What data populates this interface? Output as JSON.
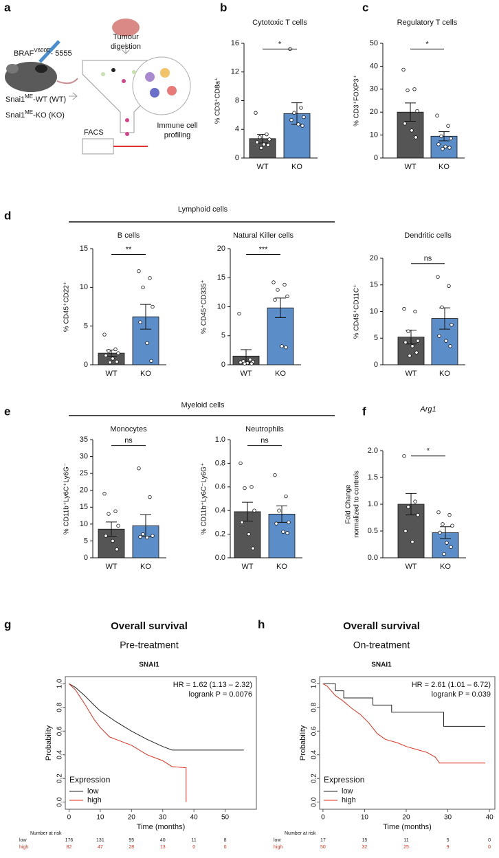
{
  "panel_labels": [
    "a",
    "b",
    "c",
    "d",
    "e",
    "f",
    "g",
    "h"
  ],
  "groups": [
    "Lymphoid cells",
    "Myeloid cells"
  ],
  "schematic": {
    "mouse_label": [
      "BRAF",
      "V600E",
      "- 5555"
    ],
    "digestion": [
      "Tumour",
      "digestion"
    ],
    "wt": [
      "Snai1",
      "ME",
      "-WT (WT)"
    ],
    "ko": [
      "Snai1",
      "ME",
      "-KO (KO)"
    ],
    "facs": "FACS",
    "profiling": [
      "Immune cell",
      "profiling"
    ]
  },
  "chart_data": [
    {
      "type": "bar",
      "title": "Cytotoxic T cells",
      "ylabel": "% CD3⁺CD8a⁺",
      "categories": [
        "WT",
        "KO"
      ],
      "values": [
        2.7,
        6.2
      ],
      "errors": [
        0.6,
        1.5
      ],
      "points": [
        [
          6.3,
          3.3,
          2.9,
          2.6,
          2.2,
          1.9,
          1.8,
          1.4
        ],
        [
          15.2,
          7.0,
          6.3,
          5.7,
          5.3,
          4.7,
          4.5
        ]
      ],
      "colors": [
        "#555555",
        "#5b8ec9"
      ],
      "ylim": [
        0,
        16
      ],
      "yticks": [
        0,
        4,
        8,
        12,
        16
      ],
      "significance": "*"
    },
    {
      "type": "bar",
      "title": "Regulatory T cells",
      "ylabel": "% CD3⁺FOXP3⁺",
      "categories": [
        "WT",
        "KO"
      ],
      "values": [
        20,
        9.5
      ],
      "errors": [
        4,
        2
      ],
      "points": [
        [
          38.5,
          30,
          29.5,
          20.5,
          15,
          12,
          9
        ],
        [
          18.5,
          14,
          9.5,
          8.5,
          6,
          5,
          4.5,
          4
        ]
      ],
      "colors": [
        "#555555",
        "#5b8ec9"
      ],
      "ylim": [
        0,
        50
      ],
      "yticks": [
        0,
        10,
        20,
        30,
        40,
        50
      ],
      "significance": "*"
    },
    {
      "type": "bar",
      "title": "B cells",
      "ylabel": "% CD45⁺CD22⁺",
      "categories": [
        "WT",
        "KO"
      ],
      "values": [
        1.5,
        6.2
      ],
      "errors": [
        0.4,
        1.6
      ],
      "points": [
        [
          3.9,
          2.0,
          1.8,
          1.5,
          1.2,
          0.8,
          0.4,
          0.3
        ],
        [
          12.1,
          11.2,
          10,
          7.5,
          5.5,
          2.8,
          0.5
        ]
      ],
      "colors": [
        "#555555",
        "#5b8ec9"
      ],
      "ylim": [
        0,
        15
      ],
      "yticks": [
        0,
        5,
        10,
        15
      ],
      "significance": "**"
    },
    {
      "type": "bar",
      "title": "Natural Killer cells",
      "ylabel": "% CD45⁺CD335⁺",
      "categories": [
        "WT",
        "KO"
      ],
      "values": [
        1.5,
        9.8
      ],
      "errors": [
        1.1,
        1.7
      ],
      "points": [
        [
          8.8,
          0.9,
          0.6,
          0.5,
          0.4,
          0.3,
          0.2,
          0.2
        ],
        [
          14.2,
          13.8,
          12.9,
          11.8,
          11.2,
          3.2,
          3
        ]
      ],
      "colors": [
        "#555555",
        "#5b8ec9"
      ],
      "ylim": [
        0,
        20
      ],
      "yticks": [
        0,
        5,
        10,
        15,
        20
      ],
      "significance": "***"
    },
    {
      "type": "bar",
      "title": "Dendritic cells",
      "ylabel": "% CD45⁺CD11C⁺",
      "categories": [
        "WT",
        "KO"
      ],
      "values": [
        5.2,
        8.7
      ],
      "errors": [
        1.3,
        2
      ],
      "points": [
        [
          10.5,
          10,
          6.3,
          4.5,
          4.2,
          3.5,
          2.3,
          1.7
        ],
        [
          16.5,
          14.8,
          10.8,
          7.5,
          5.4,
          4.5,
          3.5
        ]
      ],
      "colors": [
        "#555555",
        "#5b8ec9"
      ],
      "ylim": [
        0,
        20
      ],
      "yticks": [
        0,
        5,
        10,
        15,
        20
      ],
      "significance": "ns"
    },
    {
      "type": "bar",
      "title": "Monocytes",
      "ylabel": "% CD11b⁺Ly6C⁺Ly6G⁻",
      "categories": [
        "WT",
        "KO"
      ],
      "values": [
        8.5,
        9.5
      ],
      "errors": [
        2.1,
        3.3
      ],
      "points": [
        [
          19,
          13.8,
          13,
          9.5,
          6.5,
          5,
          2.5
        ],
        [
          26.5,
          18,
          7,
          6.5,
          6.2,
          6
        ]
      ],
      "colors": [
        "#555555",
        "#5b8ec9"
      ],
      "ylim": [
        0,
        35
      ],
      "yticks": [
        0,
        5,
        10,
        15,
        20,
        25,
        30,
        35
      ],
      "significance": "ns"
    },
    {
      "type": "bar",
      "title": "Neutrophils",
      "ylabel": "% CD11b⁺Ly6C⁻Ly6G⁺",
      "categories": [
        "WT",
        "KO"
      ],
      "values": [
        0.39,
        0.37
      ],
      "errors": [
        0.08,
        0.07
      ],
      "points": [
        [
          0.8,
          0.6,
          0.59,
          0.4,
          0.3,
          0.2,
          0.08
        ],
        [
          0.7,
          0.52,
          0.4,
          0.3,
          0.29,
          0.22,
          0.21
        ]
      ],
      "colors": [
        "#555555",
        "#5b8ec9"
      ],
      "ylim": [
        0,
        1
      ],
      "yticks": [
        {
          "value": 0,
          "label": "0.0"
        },
        0.2,
        0.4,
        0.6,
        0.8,
        {
          "value": 1,
          "label": "1.0"
        }
      ],
      "significance": "ns"
    },
    {
      "type": "bar",
      "title": "Arg1",
      "ylabel": [
        "Fold Change",
        "normalized to controls"
      ],
      "categories": [
        "WT",
        "KO"
      ],
      "values": [
        1.0,
        0.47
      ],
      "errors": [
        0.2,
        0.11
      ],
      "points": [
        [
          1.9,
          1.05,
          0.95,
          0.8,
          0.5,
          0.3
        ],
        [
          0.85,
          0.8,
          0.63,
          0.6,
          0.47,
          0.28,
          0.2,
          0.07
        ]
      ],
      "colors": [
        "#555555",
        "#5b8ec9"
      ],
      "ylim": [
        0,
        2
      ],
      "yticks": [
        {
          "value": 0,
          "label": "0.0"
        },
        0.5,
        {
          "value": 1,
          "label": "1.0"
        },
        1.5,
        {
          "value": 2,
          "label": "2.0"
        }
      ],
      "significance": "*"
    },
    {
      "type": "line",
      "title": "Overall survival",
      "subtitle": "Pre-treatment",
      "gene": "SNAI1",
      "annotations": [
        "HR = 1.62 (1.13 – 2.32)",
        "logrank P = 0.0076"
      ],
      "xlabel": "Time (months)",
      "ylabel": "Probability",
      "xlim": [
        -1.2,
        60
      ],
      "xticks": [
        0,
        10,
        20,
        30,
        40,
        50
      ],
      "ylim": [
        -0.06,
        1.06
      ],
      "yticks": [
        {
          "value": 0,
          "label": "0.0"
        },
        0.2,
        0.4,
        0.6,
        0.8,
        {
          "value": 1,
          "label": "1.0"
        }
      ],
      "legend_title": "Expression",
      "legend": "lower left",
      "series": [
        {
          "name": "low",
          "color": "#222222",
          "x": [
            0,
            2,
            5,
            8,
            10,
            15,
            20,
            25,
            30,
            33,
            56
          ],
          "values": [
            1,
            0.97,
            0.9,
            0.82,
            0.77,
            0.68,
            0.6,
            0.53,
            0.47,
            0.44,
            0.44
          ]
        },
        {
          "name": "high",
          "color": "#e0301e",
          "x": [
            0,
            2,
            5,
            8,
            10,
            13,
            15,
            20,
            25,
            30,
            33,
            37.5,
            37.5
          ],
          "values": [
            1,
            0.95,
            0.83,
            0.7,
            0.63,
            0.55,
            0.53,
            0.48,
            0.4,
            0.35,
            0.3,
            0.29,
            0
          ]
        }
      ],
      "risk_title": "Number at risk",
      "risk": [
        [
          176,
          131,
          95,
          40,
          11,
          8
        ],
        [
          82,
          47,
          28,
          13,
          0,
          0
        ]
      ]
    },
    {
      "type": "line",
      "title": "Overall survival",
      "subtitle": "On-treatment",
      "gene": "SNAI1",
      "annotations": [
        "HR = 2.61 (1.01 – 6.72)",
        "logrank P = 0.039"
      ],
      "xlabel": "Time (months)",
      "ylabel": "Probability",
      "xlim": [
        -0.8,
        41.3
      ],
      "xticks": [
        0,
        10,
        20,
        30,
        40
      ],
      "ylim": [
        -0.06,
        1.06
      ],
      "yticks": [
        {
          "value": 0,
          "label": "0.0"
        },
        0.2,
        0.4,
        0.6,
        0.8,
        {
          "value": 1,
          "label": "1.0"
        }
      ],
      "legend_title": "Expression",
      "legend": "lower left",
      "series": [
        {
          "name": "low",
          "color": "#222222",
          "x": [
            0,
            3,
            3,
            5,
            5,
            12,
            12,
            16.5,
            16.5,
            29,
            29,
            39
          ],
          "values": [
            1,
            1,
            0.94,
            0.94,
            0.88,
            0.88,
            0.82,
            0.82,
            0.76,
            0.76,
            0.64,
            0.64
          ]
        },
        {
          "name": "high",
          "color": "#e0301e",
          "x": [
            0,
            1,
            3,
            5,
            7,
            9,
            11,
            13,
            15,
            18,
            20,
            23,
            25,
            27,
            28,
            39
          ],
          "values": [
            1,
            0.98,
            0.9,
            0.85,
            0.79,
            0.74,
            0.67,
            0.58,
            0.53,
            0.5,
            0.47,
            0.44,
            0.42,
            0.38,
            0.33,
            0.33
          ]
        }
      ],
      "risk_title": "Number at risk",
      "risk": [
        [
          17,
          15,
          11,
          5,
          0
        ],
        [
          50,
          32,
          25,
          9,
          0
        ]
      ]
    }
  ]
}
